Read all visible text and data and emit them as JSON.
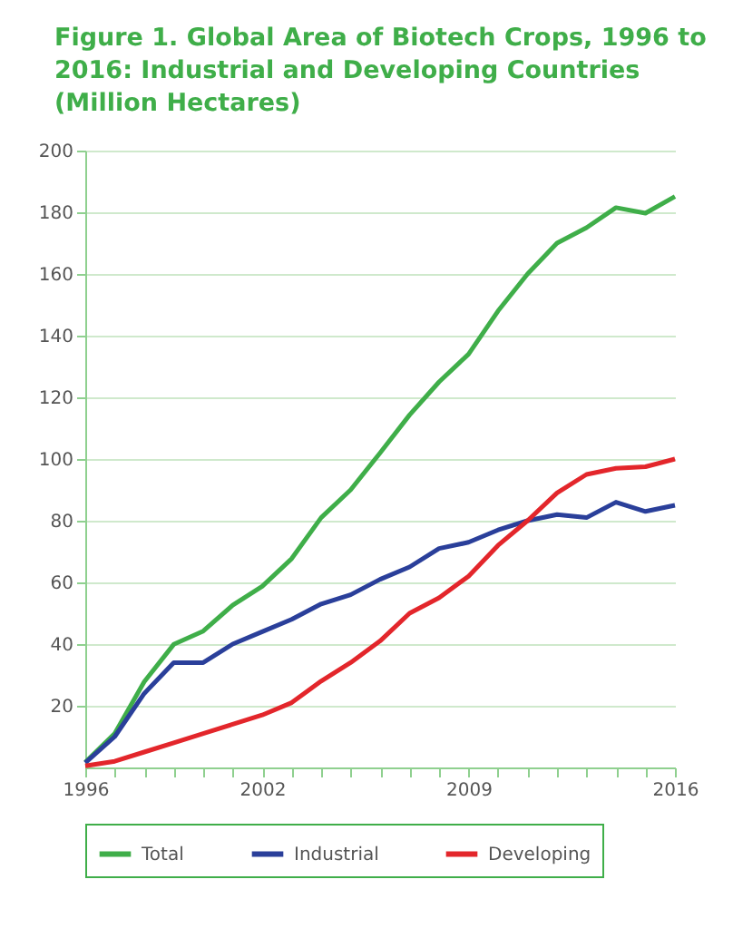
{
  "chart_data": {
    "type": "line",
    "title": "Figure 1. Global Area of Biotech Crops, 1996 to 2016: Industrial and Developing Countries (Million Hectares)",
    "x": [
      1996,
      1997,
      1998,
      1999,
      2000,
      2001,
      2002,
      2003,
      2004,
      2005,
      2006,
      2007,
      2008,
      2009,
      2010,
      2011,
      2012,
      2013,
      2014,
      2015,
      2016
    ],
    "series": [
      {
        "name": "Total",
        "color": "#3fae49",
        "values": [
          1.7,
          11,
          27.8,
          39.9,
          44.2,
          52.6,
          58.7,
          67.7,
          81,
          90,
          102,
          114.3,
          125,
          134,
          148,
          160,
          170,
          175,
          181.5,
          179.7,
          185.1
        ]
      },
      {
        "name": "Industrial",
        "color": "#2a3f9a",
        "values": [
          1.5,
          10,
          24,
          34,
          34,
          40,
          44,
          48,
          53,
          56,
          61,
          65,
          71,
          73,
          77,
          80,
          82,
          81,
          86,
          83,
          85
        ]
      },
      {
        "name": "Developing",
        "color": "#e3262b",
        "values": [
          0.5,
          2,
          5,
          8,
          11,
          14,
          17,
          21,
          28,
          34,
          41,
          50,
          55,
          62,
          72,
          80,
          89,
          95,
          97,
          97.5,
          100
        ]
      }
    ],
    "xlim": [
      1996,
      2016
    ],
    "xticks": [
      1996,
      {
        "value": 1997,
        "label": null
      },
      {
        "value": 1998,
        "label": null
      },
      {
        "value": 1999,
        "label": null
      },
      {
        "value": 2000,
        "label": null
      },
      {
        "value": 2001,
        "label": null
      },
      2002,
      {
        "value": 2003,
        "label": null
      },
      {
        "value": 2004,
        "label": null
      },
      {
        "value": 2005,
        "label": null
      },
      {
        "value": 2006,
        "label": null
      },
      {
        "value": 2007,
        "label": null
      },
      {
        "value": 2008,
        "label": null
      },
      2009,
      {
        "value": 2010,
        "label": null
      },
      {
        "value": 2011,
        "label": null
      },
      {
        "value": 2012,
        "label": null
      },
      {
        "value": 2013,
        "label": null
      },
      {
        "value": 2014,
        "label": null
      },
      {
        "value": 2015,
        "label": null
      },
      2016
    ],
    "ylim": [
      0,
      200
    ],
    "yticks": [
      20,
      40,
      60,
      80,
      100,
      120,
      140,
      160,
      180,
      200
    ],
    "grid": "y",
    "legend": "bottom",
    "marker": "none",
    "line_style": "solid"
  }
}
